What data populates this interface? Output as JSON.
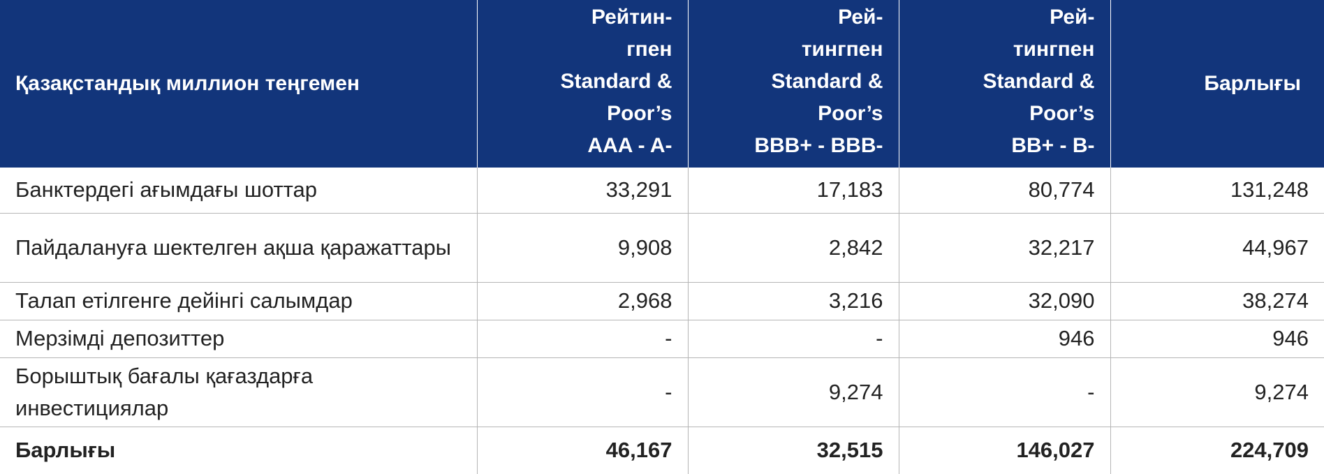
{
  "table": {
    "header": {
      "label": "Қазақстандық миллион теңгемен",
      "col1": [
        "Рейтин-",
        "гпен",
        "Standard &",
        "Poor’s",
        "AAA - A-"
      ],
      "col2": [
        "Рей-",
        "тингпен",
        "Standard &",
        "Poor’s",
        "BBB+ - BBB-"
      ],
      "col3": [
        "Рей-",
        "тингпен",
        "Standard &",
        "Poor’s",
        "BB+ - B-"
      ],
      "col4": "Барлығы"
    },
    "rows": [
      {
        "label": "Банктердегі ағымдағы шоттар",
        "values": [
          "33,291",
          "17,183",
          "80,774",
          "131,248"
        ]
      },
      {
        "label": "Пайдалануға шектелген ақша қаражаттары",
        "values": [
          "9,908",
          "2,842",
          "32,217",
          "44,967"
        ]
      },
      {
        "label": "Талап етілгенге дейінгі салымдар",
        "values": [
          "2,968",
          "3,216",
          "32,090",
          "38,274"
        ]
      },
      {
        "label": "Мерзімді депозиттер",
        "values": [
          "-",
          "-",
          "946",
          "946"
        ]
      },
      {
        "label": "Борыштық бағалы қағаздарға инвестициялар",
        "values": [
          "-",
          "9,274",
          "-",
          "9,274"
        ]
      }
    ],
    "total": {
      "label": "Барлығы",
      "values": [
        "46,167",
        "32,515",
        "146,027",
        "224,709"
      ]
    }
  },
  "colors": {
    "header_background": "#12357b",
    "header_text": "#ffffff",
    "body_text": "#222222",
    "grid_line": "#b5b5b5"
  }
}
